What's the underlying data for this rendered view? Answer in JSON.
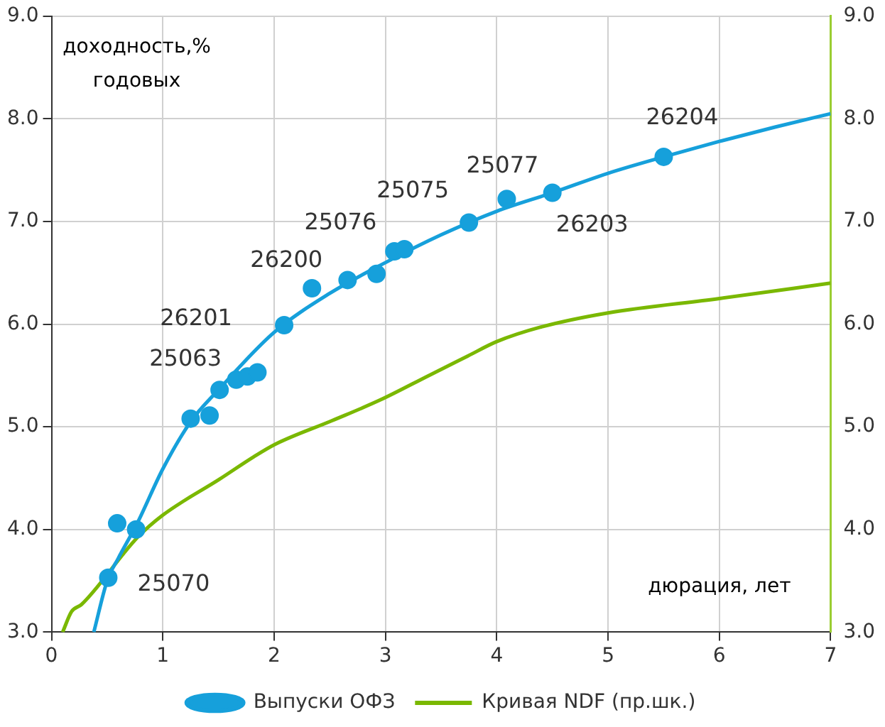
{
  "chart_data": {
    "type": "scatter",
    "xlabel": "дюрация, лет",
    "ylabel": "доходность,%\nгодовых",
    "xlim": [
      0,
      7
    ],
    "xticks": [
      0,
      1,
      2,
      3,
      4,
      5,
      6,
      7
    ],
    "ylim": [
      3,
      9
    ],
    "yticks": [
      {
        "value": 3,
        "label": "3.0"
      },
      {
        "value": 4,
        "label": "4.0"
      },
      {
        "value": 5,
        "label": "5.0"
      },
      {
        "value": 6,
        "label": "6.0"
      },
      {
        "value": 7,
        "label": "7.0"
      },
      {
        "value": 8,
        "label": "8.0"
      },
      {
        "value": 9,
        "label": "9.0"
      }
    ],
    "y2lim": [
      3,
      9
    ],
    "y2ticks": [
      {
        "value": 3,
        "label": "3.0"
      },
      {
        "value": 4,
        "label": "4.0"
      },
      {
        "value": 5,
        "label": "5.0"
      },
      {
        "value": 6,
        "label": "6.0"
      },
      {
        "value": 7,
        "label": "7.0"
      },
      {
        "value": 8,
        "label": "8.0"
      },
      {
        "value": 9,
        "label": "9.0"
      }
    ],
    "grid": true,
    "legend": "bottom",
    "marker": "circle",
    "series": [
      {
        "name": "Выпуски ОФЗ",
        "type": "scatter",
        "color": "#16a0db",
        "x": [
          0.51,
          0.59,
          0.76,
          1.25,
          1.42,
          1.51,
          1.66,
          1.76,
          1.85,
          2.09,
          2.34,
          2.66,
          2.92,
          3.08,
          3.17,
          3.75,
          4.09,
          4.5,
          5.5
        ],
        "values": [
          3.53,
          4.06,
          4.0,
          5.08,
          5.11,
          5.36,
          5.46,
          5.49,
          5.53,
          5.99,
          6.35,
          6.43,
          6.49,
          6.71,
          6.73,
          6.99,
          7.22,
          7.28,
          7.63
        ]
      },
      {
        "type": "line",
        "color": "#16a0db",
        "marker": "none",
        "x": [
          0.38,
          0.5,
          0.6,
          0.77,
          1.0,
          1.25,
          1.5,
          2.0,
          2.5,
          3.0,
          3.5,
          4.0,
          4.5,
          5.0,
          5.5,
          6.0,
          6.5,
          7.0
        ],
        "values": [
          3.0,
          3.5,
          3.72,
          4.06,
          4.59,
          5.05,
          5.36,
          5.92,
          6.3,
          6.6,
          6.87,
          7.1,
          7.28,
          7.47,
          7.63,
          7.78,
          7.92,
          8.05
        ]
      },
      {
        "name": "Кривая NDF (пр.шк.)",
        "type": "line",
        "axis": "y2",
        "color": "#7ab800",
        "marker": "none",
        "x": [
          0.1,
          0.18,
          0.27,
          0.77,
          1.0,
          1.51,
          1.82,
          2.01,
          2.52,
          2.95,
          3.39,
          3.74,
          4.0,
          4.39,
          5.0,
          6.0,
          7.0
        ],
        "values": [
          3.0,
          3.2,
          3.27,
          3.92,
          4.14,
          4.49,
          4.71,
          4.83,
          5.06,
          5.26,
          5.5,
          5.69,
          5.83,
          5.97,
          6.11,
          6.25,
          6.4
        ]
      }
    ],
    "annotations": [
      {
        "text": "25070",
        "x": 0.51,
        "y": 3.53
      },
      {
        "text": "25063",
        "x": 1.51,
        "y": 5.36
      },
      {
        "text": "26201",
        "x": 2.09,
        "y": 5.99
      },
      {
        "text": "26200",
        "x": 2.34,
        "y": 6.35
      },
      {
        "text": "25076",
        "x": 2.66,
        "y": 6.43
      },
      {
        "text": "25075",
        "x": 3.08,
        "y": 6.71
      },
      {
        "text": "25077",
        "x": 4.09,
        "y": 7.22
      },
      {
        "text": "26203",
        "x": 4.5,
        "y": 7.28
      },
      {
        "text": "26204",
        "x": 5.5,
        "y": 7.63
      }
    ]
  }
}
